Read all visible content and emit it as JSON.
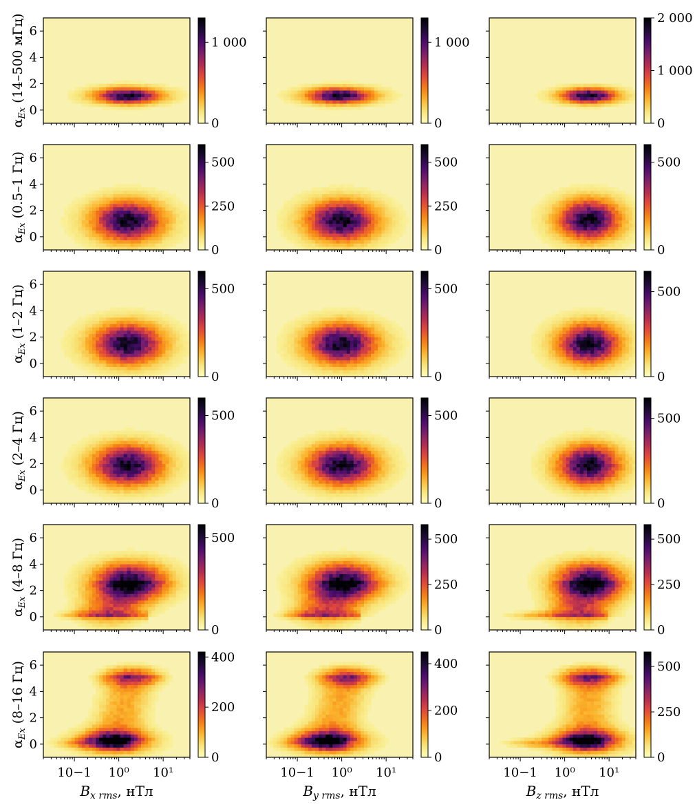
{
  "chart_data": {
    "type": "heatmap",
    "figure_kind": "2D histogram grid",
    "colormap": "inferno_r",
    "colormap_stops": [
      "#fcfcbd",
      "#f8e57a",
      "#fbb52d",
      "#f57d15",
      "#e1493c",
      "#b22c52",
      "#7a1f6d",
      "#4a0c6b",
      "#1c0c33",
      "#000004"
    ],
    "background_color": "#f8f1b0",
    "x_axis": {
      "scale": "log",
      "xlim": [
        0.02,
        40
      ],
      "ticks": [
        0.1,
        1,
        10
      ],
      "tick_labels": [
        "10−1",
        "10⁰",
        "10¹"
      ]
    },
    "y_axis": {
      "ylim": [
        -1,
        7
      ],
      "ticks": [
        0,
        2,
        4,
        6
      ],
      "tick_labels": [
        "0",
        "2",
        "4",
        "6"
      ]
    },
    "columns": [
      {
        "xlabel": "B",
        "xlabel_sub": "x rms",
        "xlabel_unit": ", нТл"
      },
      {
        "xlabel": "B",
        "xlabel_sub": "y rms",
        "xlabel_unit": ", нТл"
      },
      {
        "xlabel": "B",
        "xlabel_sub": "z rms",
        "xlabel_unit": ", нТл"
      }
    ],
    "rows": [
      {
        "ylabel_sym": "α",
        "ylabel_sub": "Ex",
        "ylabel_band": " (14–500 мГц)",
        "panels": [
          {
            "cbar_max": 1300,
            "cbar_ticks": [
              0,
              1000
            ],
            "cbar_tick_labels": [
              "0",
              "1 000"
            ],
            "peak_x": 1.6,
            "peak_y": 1.1,
            "spread_x": 0.42,
            "spread_y": 0.35,
            "secondary": null
          },
          {
            "cbar_max": 1300,
            "cbar_ticks": [
              0,
              1000
            ],
            "cbar_tick_labels": [
              "0",
              "1 000"
            ],
            "peak_x": 0.9,
            "peak_y": 1.1,
            "spread_x": 0.42,
            "spread_y": 0.35,
            "secondary": null
          },
          {
            "cbar_max": 2000,
            "cbar_ticks": [
              0,
              1000,
              2000
            ],
            "cbar_tick_labels": [
              "0",
              "1 000",
              "2 000"
            ],
            "peak_x": 3.5,
            "peak_y": 1.1,
            "spread_x": 0.36,
            "spread_y": 0.33,
            "secondary": null
          }
        ]
      },
      {
        "ylabel_sym": "α",
        "ylabel_sub": "Ex",
        "ylabel_band": " (0.5–1 Гц)",
        "panels": [
          {
            "cbar_max": 600,
            "cbar_ticks": [
              0,
              250,
              500
            ],
            "cbar_tick_labels": [
              "0",
              "250",
              "500"
            ],
            "peak_x": 1.6,
            "peak_y": 1.2,
            "spread_x": 0.45,
            "spread_y": 0.9,
            "secondary": null
          },
          {
            "cbar_max": 600,
            "cbar_ticks": [
              0,
              250,
              500
            ],
            "cbar_tick_labels": [
              "0",
              "250",
              "500"
            ],
            "peak_x": 1.0,
            "peak_y": 1.2,
            "spread_x": 0.45,
            "spread_y": 0.9,
            "secondary": null
          },
          {
            "cbar_max": 600,
            "cbar_ticks": [
              0,
              500
            ],
            "cbar_tick_labels": [
              "0",
              "500"
            ],
            "peak_x": 3.5,
            "peak_y": 1.3,
            "spread_x": 0.4,
            "spread_y": 0.9,
            "secondary": null
          }
        ]
      },
      {
        "ylabel_sym": "α",
        "ylabel_sub": "Ex",
        "ylabel_band": " (1–2 Гц)",
        "panels": [
          {
            "cbar_max": 600,
            "cbar_ticks": [
              0,
              500
            ],
            "cbar_tick_labels": [
              "0",
              "500"
            ],
            "peak_x": 1.6,
            "peak_y": 1.5,
            "spread_x": 0.45,
            "spread_y": 0.9,
            "secondary": null
          },
          {
            "cbar_max": 600,
            "cbar_ticks": [
              0,
              500
            ],
            "cbar_tick_labels": [
              "0",
              "500"
            ],
            "peak_x": 1.0,
            "peak_y": 1.5,
            "spread_x": 0.45,
            "spread_y": 0.9,
            "secondary": null
          },
          {
            "cbar_max": 620,
            "cbar_ticks": [
              0,
              500
            ],
            "cbar_tick_labels": [
              "0",
              "500"
            ],
            "peak_x": 3.5,
            "peak_y": 1.5,
            "spread_x": 0.4,
            "spread_y": 0.9,
            "secondary": null
          }
        ]
      },
      {
        "ylabel_sym": "α",
        "ylabel_sub": "Ex",
        "ylabel_band": " (2–4 Гц)",
        "panels": [
          {
            "cbar_max": 600,
            "cbar_ticks": [
              0,
              500
            ],
            "cbar_tick_labels": [
              "0",
              "500"
            ],
            "peak_x": 1.6,
            "peak_y": 1.9,
            "spread_x": 0.45,
            "spread_y": 0.9,
            "secondary": null
          },
          {
            "cbar_max": 600,
            "cbar_ticks": [
              0,
              500
            ],
            "cbar_tick_labels": [
              "0",
              "500"
            ],
            "peak_x": 1.0,
            "peak_y": 1.9,
            "spread_x": 0.45,
            "spread_y": 0.9,
            "secondary": null
          },
          {
            "cbar_max": 620,
            "cbar_ticks": [
              0,
              500
            ],
            "cbar_tick_labels": [
              "0",
              "500"
            ],
            "peak_x": 3.5,
            "peak_y": 1.9,
            "spread_x": 0.4,
            "spread_y": 0.9,
            "secondary": null
          }
        ]
      },
      {
        "ylabel_sym": "α",
        "ylabel_sub": "Ex",
        "ylabel_band": " (4–8 Гц)",
        "panels": [
          {
            "cbar_max": 570,
            "cbar_ticks": [
              0,
              500
            ],
            "cbar_tick_labels": [
              "0",
              "500"
            ],
            "peak_x": 1.8,
            "peak_y": 2.7,
            "spread_x": 0.45,
            "spread_y": 0.8,
            "secondary": {
              "x": 0.6,
              "y": 0.1,
              "weight": 0.25
            }
          },
          {
            "cbar_max": 580,
            "cbar_ticks": [
              0,
              250,
              500
            ],
            "cbar_tick_labels": [
              "0",
              "250",
              "500"
            ],
            "peak_x": 1.1,
            "peak_y": 2.7,
            "spread_x": 0.45,
            "spread_y": 0.8,
            "secondary": {
              "x": 0.4,
              "y": 0.1,
              "weight": 0.25
            }
          },
          {
            "cbar_max": 580,
            "cbar_ticks": [
              0,
              250,
              500
            ],
            "cbar_tick_labels": [
              "0",
              "250",
              "500"
            ],
            "peak_x": 3.6,
            "peak_y": 2.7,
            "spread_x": 0.42,
            "spread_y": 0.8,
            "secondary": {
              "x": 2.0,
              "y": 0.1,
              "weight": 0.25
            }
          }
        ]
      },
      {
        "ylabel_sym": "α",
        "ylabel_sub": "Ex",
        "ylabel_band": " (8–16 Гц)",
        "panels": [
          {
            "cbar_max": 420,
            "cbar_ticks": [
              0,
              200,
              400
            ],
            "cbar_tick_labels": [
              "0",
              "200",
              "400"
            ],
            "peak_x": 0.8,
            "peak_y": 0.2,
            "spread_x": 0.4,
            "spread_y": 0.45,
            "secondary": {
              "x": 1.9,
              "y": 5.2,
              "weight": 0.65
            }
          },
          {
            "cbar_max": 450,
            "cbar_ticks": [
              0,
              200,
              400
            ],
            "cbar_tick_labels": [
              "0",
              "200",
              "400"
            ],
            "peak_x": 0.5,
            "peak_y": 0.2,
            "spread_x": 0.4,
            "spread_y": 0.45,
            "secondary": {
              "x": 1.3,
              "y": 5.2,
              "weight": 0.65
            }
          },
          {
            "cbar_max": 580,
            "cbar_ticks": [
              0,
              250,
              500
            ],
            "cbar_tick_labels": [
              "0",
              "250",
              "500"
            ],
            "peak_x": 3.2,
            "peak_y": 0.2,
            "spread_x": 0.4,
            "spread_y": 0.45,
            "secondary": {
              "x": 3.6,
              "y": 5.2,
              "weight": 0.7
            }
          }
        ]
      }
    ]
  }
}
